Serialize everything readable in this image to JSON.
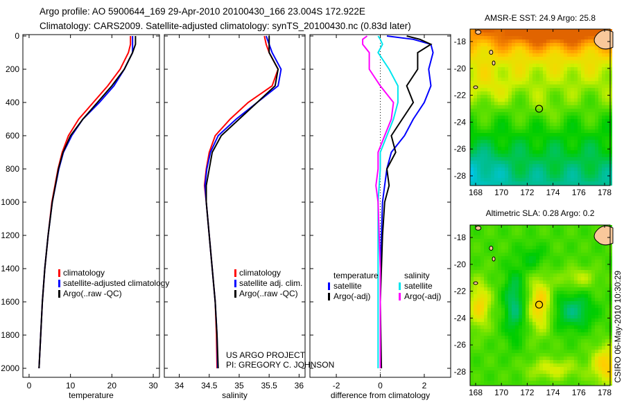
{
  "header": {
    "line1": "Argo profile: AO 5900644_169 29-Apr-2010 20100430_166 23.004S 172.922E",
    "line2": "Climatology: CARS2009. Satellite-adjusted climatology: synTS_20100430.nc (0.83d later)"
  },
  "annotations": {
    "project": "US ARGO PROJECT",
    "pi": "PI: GREGORY C. JOHNSON",
    "stamp": "CSIRO 06-May-2010 10:30:29"
  },
  "colors": {
    "climatology": "#ff0000",
    "satellite": "#0000ff",
    "argo": "#000000",
    "sal_satellite": "#00e5ee",
    "sal_argo": "#ff00ff"
  },
  "chart_data": [
    {
      "type": "line",
      "xlabel": "temperature",
      "xlim": [
        -1.5,
        31.5
      ],
      "ylim": [
        0,
        2050
      ],
      "y_reversed": true,
      "xticks": [
        "0",
        "10",
        "20",
        "30"
      ],
      "xtick_values": [
        0,
        10,
        20,
        30
      ],
      "yticks": [
        "0",
        "200",
        "400",
        "600",
        "800",
        "1000",
        "1200",
        "1400",
        "1600",
        "1800",
        "2000"
      ],
      "ytick_values": [
        0,
        200,
        400,
        600,
        800,
        1000,
        1200,
        1400,
        1600,
        1800,
        2000
      ],
      "legend": [
        "climatology",
        "satellite-adjusted climatology",
        "Argo(..raw -QC)"
      ],
      "depth": [
        0,
        50,
        100,
        200,
        300,
        400,
        500,
        600,
        700,
        800,
        1000,
        1200,
        1400,
        1600,
        1800,
        2000
      ],
      "series": [
        {
          "name": "climatology",
          "color": "#ff0000",
          "values": [
            24.5,
            24.5,
            24,
            22,
            19,
            15.5,
            12,
            9.5,
            8,
            7,
            5.5,
            4.6,
            3.8,
            3.2,
            2.8,
            2.4
          ]
        },
        {
          "name": "satellite-adjusted climatology",
          "color": "#0000ff",
          "values": [
            25,
            25,
            25,
            23,
            20.5,
            17,
            13,
            10.3,
            8.3,
            7.2,
            5.6,
            4.6,
            3.8,
            3.2,
            2.8,
            2.4
          ]
        },
        {
          "name": "Argo(..raw -QC)",
          "color": "#000000",
          "values": [
            25.7,
            25.7,
            25,
            23,
            20,
            16.5,
            13,
            10,
            8.2,
            7.1,
            5.6,
            4.6,
            3.8,
            3.2,
            2.8,
            2.4
          ]
        }
      ]
    },
    {
      "type": "line",
      "xlabel": "salinity",
      "xlim": [
        33.75,
        36.1
      ],
      "ylim": [
        0,
        2050
      ],
      "y_reversed": true,
      "xticks": [
        "34",
        "34.5",
        "35",
        "35.5",
        "36"
      ],
      "xtick_values": [
        34,
        34.5,
        35,
        35.5,
        36
      ],
      "legend": [
        "climatology",
        "satellite adj. clim.",
        "Argo(..raw -QC)"
      ],
      "depth": [
        0,
        50,
        100,
        200,
        300,
        400,
        500,
        600,
        700,
        800,
        900,
        1000,
        1200,
        1400,
        1600,
        1800,
        2000
      ],
      "series": [
        {
          "name": "climatology",
          "color": "#ff0000",
          "values": [
            35.42,
            35.45,
            35.5,
            35.65,
            35.55,
            35.15,
            34.85,
            34.6,
            34.5,
            34.45,
            34.42,
            34.45,
            34.5,
            34.55,
            34.6,
            34.62,
            34.63
          ]
        },
        {
          "name": "satellite adj. clim.",
          "color": "#0000ff",
          "values": [
            35.45,
            35.5,
            35.55,
            35.7,
            35.65,
            35.3,
            34.95,
            34.65,
            34.52,
            34.46,
            34.43,
            34.45,
            34.5,
            34.55,
            34.6,
            34.63,
            34.64
          ]
        },
        {
          "name": "Argo(..raw -QC)",
          "color": "#000000",
          "values": [
            35.5,
            35.5,
            35.5,
            35.65,
            35.6,
            35.3,
            35.0,
            34.7,
            34.55,
            34.5,
            34.45,
            34.45,
            34.5,
            34.55,
            34.6,
            34.63,
            34.65
          ]
        }
      ]
    },
    {
      "type": "line",
      "xlabel": "difference from climatology",
      "xlim": [
        -3.2,
        3.2
      ],
      "ylim": [
        0,
        2050
      ],
      "y_reversed": true,
      "xticks": [
        "-2",
        "0",
        "2"
      ],
      "xtick_values": [
        -2,
        0,
        2
      ],
      "legend_titles": [
        "temperature",
        "salinity"
      ],
      "legend": [
        "satellite",
        "Argo(-adj)",
        "satellite",
        "Argo(-adj)"
      ],
      "depth": [
        0,
        20,
        50,
        100,
        200,
        300,
        400,
        500,
        600,
        700,
        800,
        900,
        1000,
        1200,
        1400,
        1600,
        2000
      ],
      "series": [
        {
          "name": "temperature satellite",
          "color": "#0000ff",
          "values": [
            0.3,
            1.5,
            2.3,
            2.4,
            2.2,
            2.3,
            2.0,
            1.5,
            1.1,
            0.5,
            0.3,
            0.2,
            0.1,
            0.05,
            0,
            0,
            0
          ]
        },
        {
          "name": "temperature Argo(-adj)",
          "color": "#000000",
          "values": [
            1.2,
            1.8,
            2.3,
            1.7,
            1.7,
            1.2,
            1.5,
            1.0,
            0.5,
            0.7,
            0.3,
            0.4,
            0.2,
            0.1,
            0.05,
            0,
            0.05
          ]
        },
        {
          "name": "salinity satellite",
          "color": "#00e5ee",
          "values": [
            -0.1,
            0.0,
            0.1,
            -0.1,
            0.4,
            0.8,
            0.8,
            0.6,
            0.3,
            0.0,
            0.0,
            -0.05,
            -0.1,
            -0.1,
            -0.1,
            -0.1,
            -0.1
          ]
        },
        {
          "name": "salinity Argo(-adj)",
          "color": "#ff00ff",
          "values": [
            -0.6,
            -0.8,
            -0.8,
            -0.5,
            -0.5,
            0.0,
            0.6,
            0.5,
            0.2,
            -0.1,
            -0.1,
            -0.2,
            -0.1,
            -0.05,
            0,
            0,
            0
          ]
        }
      ]
    },
    {
      "type": "heatmap",
      "title": "AMSR-E SST: 24.9 Argo: 25.8",
      "lon_ticks": [
        "168",
        "170",
        "172",
        "174",
        "176",
        "178"
      ],
      "lon_values": [
        168,
        170,
        172,
        174,
        176,
        178
      ],
      "lat_ticks": [
        "-18",
        "-20",
        "-22",
        "-24",
        "-26",
        "-28"
      ],
      "lat_values": [
        -18,
        -20,
        -22,
        -24,
        -26,
        -28
      ],
      "argo_position": {
        "lon": 172.922,
        "lat": -23.004
      }
    },
    {
      "type": "heatmap",
      "title": "Altimetric SLA: 0.28 Argo: 0.2",
      "lon_ticks": [
        "168",
        "170",
        "172",
        "174",
        "176",
        "178"
      ],
      "lon_values": [
        168,
        170,
        172,
        174,
        176,
        178
      ],
      "lat_ticks": [
        "-18",
        "-20",
        "-22",
        "-24",
        "-26",
        "-28"
      ],
      "lat_values": [
        -18,
        -20,
        -22,
        -24,
        -26,
        -28
      ],
      "argo_position": {
        "lon": 172.922,
        "lat": -23.004
      }
    }
  ]
}
